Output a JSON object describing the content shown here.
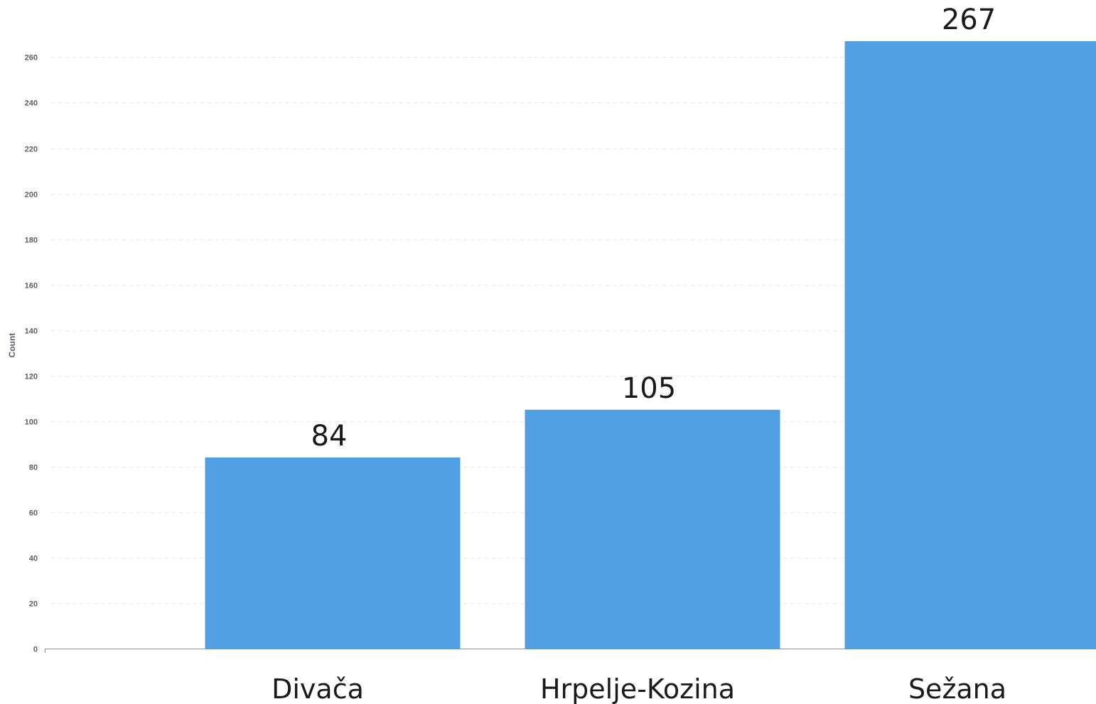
{
  "chart_data": {
    "type": "bar",
    "categories": [
      "Divača",
      "Hrpelje-Kozina",
      "Sežana"
    ],
    "values": [
      84,
      105,
      267
    ],
    "data_labels": [
      "84",
      "105",
      "267"
    ],
    "title": "",
    "xlabel": "",
    "ylabel": "Count",
    "ylim": [
      0,
      267
    ],
    "yticks": [
      0,
      20,
      40,
      60,
      80,
      100,
      120,
      140,
      160,
      180,
      200,
      220,
      240,
      260
    ],
    "grid": true,
    "legend": "none",
    "colors": {
      "bar": "#519fe3",
      "grid": "#e3e5ea",
      "axis": "#8c8f99",
      "tick_text": "#5b5f6b",
      "label_text": "#1a1a1a"
    }
  }
}
